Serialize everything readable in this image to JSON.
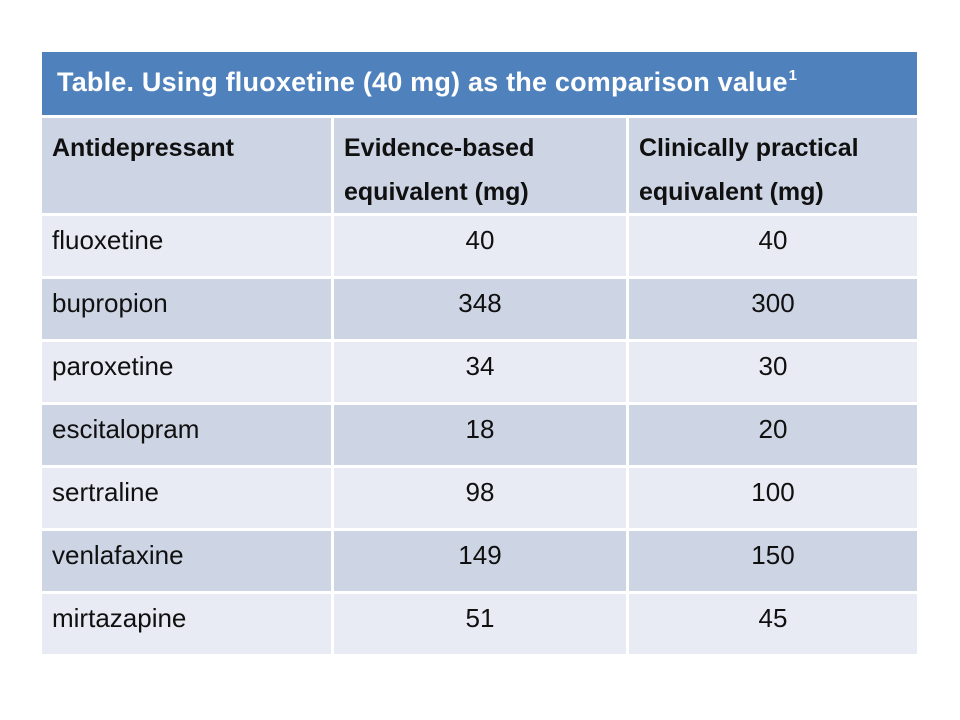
{
  "slide": {
    "title": {
      "text": "Table. Using fluoxetine (40 mg) as the comparison value",
      "superscript": "1"
    },
    "table": {
      "columns": [
        "Antidepressant",
        "Evidence-based equivalent (mg)",
        "Clinically practical equivalent (mg)"
      ],
      "rows": [
        {
          "drug": "fluoxetine",
          "evidence": "40",
          "practical": "40"
        },
        {
          "drug": "bupropion",
          "evidence": "348",
          "practical": "300"
        },
        {
          "drug": "paroxetine",
          "evidence": "34",
          "practical": "30"
        },
        {
          "drug": "escitalopram",
          "evidence": "18",
          "practical": "20"
        },
        {
          "drug": "sertraline",
          "evidence": "98",
          "practical": "100"
        },
        {
          "drug": "venlafaxine",
          "evidence": "149",
          "practical": "150"
        },
        {
          "drug": "mirtazapine",
          "evidence": "51",
          "practical": "45"
        }
      ]
    },
    "colors": {
      "title_bar": "#4f81bd",
      "title_text": "#ffffff",
      "band_dark": "#cdd4e4",
      "band_light": "#e9ebf4",
      "body_text": "#101010",
      "background": "#ffffff"
    }
  }
}
